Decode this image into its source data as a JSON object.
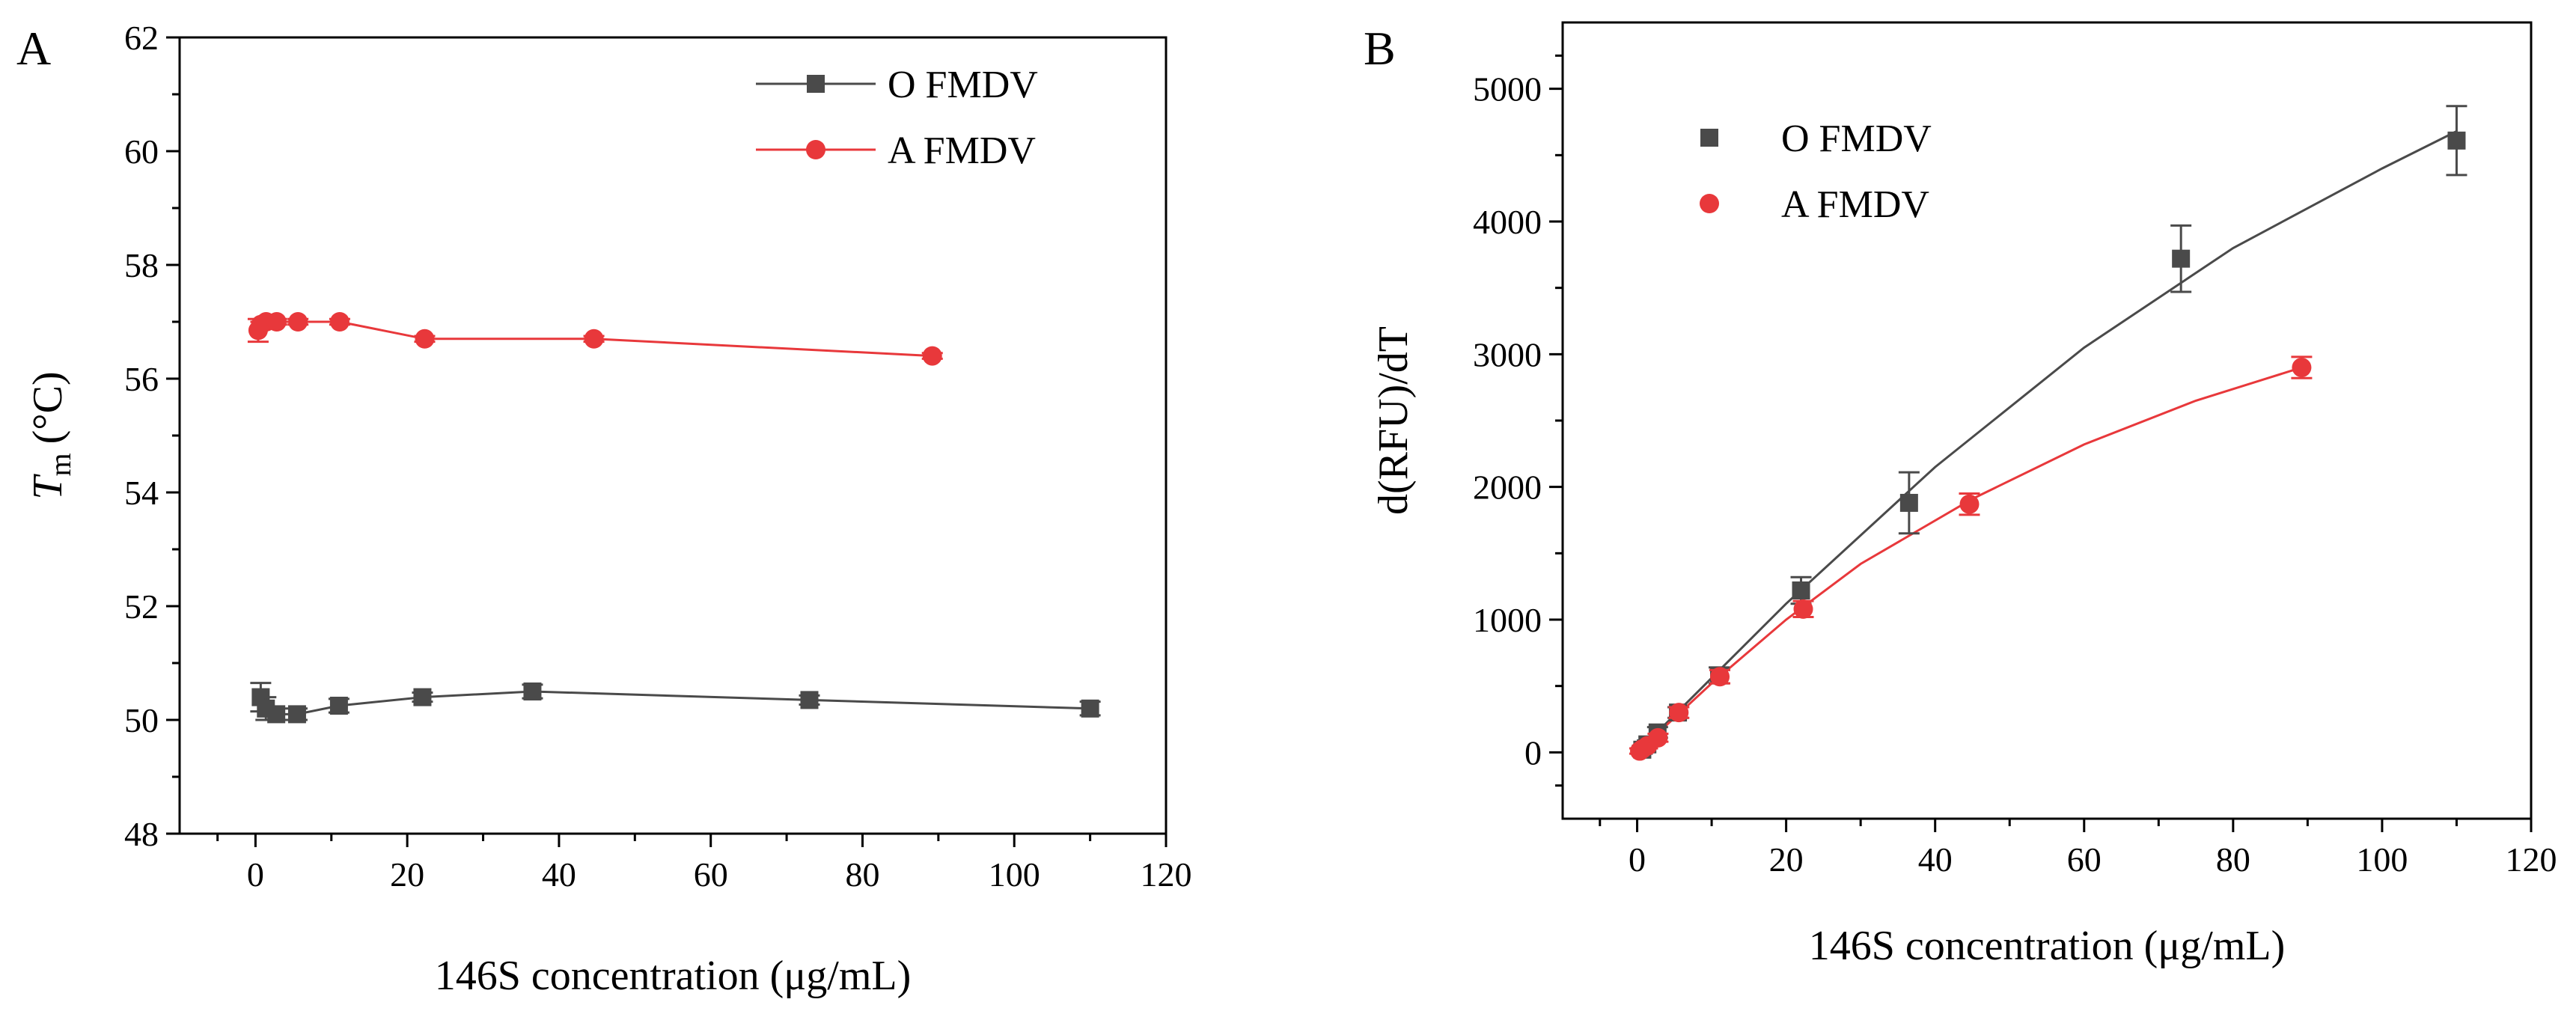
{
  "chart_data": [
    {
      "panel_label": "A",
      "type": "line",
      "xlabel": "146S concentration (μg/mL)",
      "ylabel_main": "T",
      "ylabel_sub": "m",
      "ylabel_unit": "(°C)",
      "xlim": [
        -10,
        120
      ],
      "ylim": [
        48,
        62
      ],
      "xticks": [
        0,
        20,
        40,
        60,
        80,
        100,
        120
      ],
      "yticks": [
        48,
        50,
        52,
        54,
        56,
        58,
        60,
        62
      ],
      "legend_position": "top-right",
      "series": [
        {
          "name": "O FMDV",
          "color": "#4a4a4a",
          "marker": "square",
          "x": [
            0.69,
            1.37,
            2.74,
            5.48,
            11.0,
            22.0,
            36.5,
            73.0,
            110.0
          ],
          "y": [
            50.4,
            50.2,
            50.1,
            50.1,
            50.25,
            50.4,
            50.5,
            50.35,
            50.2
          ],
          "err": [
            0.25,
            0.2,
            0.1,
            0.1,
            0.12,
            0.08,
            0.12,
            0.08,
            0.12
          ]
        },
        {
          "name": "A FMDV",
          "color": "#e8383b",
          "marker": "circle",
          "x": [
            0.35,
            0.7,
            1.4,
            2.8,
            5.6,
            11.1,
            22.3,
            44.6,
            89.2
          ],
          "y": [
            56.85,
            56.95,
            57.0,
            57.0,
            57.0,
            57.0,
            56.7,
            56.7,
            56.4
          ],
          "err": [
            0.2,
            0.05,
            0.05,
            0.05,
            0.05,
            0.05,
            0.05,
            0.05,
            0.05
          ]
        }
      ]
    },
    {
      "panel_label": "B",
      "type": "scatter",
      "xlabel": "146S concentration (μg/mL)",
      "ylabel": "d(RFU)/dT",
      "xlim": [
        -10,
        120
      ],
      "ylim": [
        -500,
        5500
      ],
      "xticks": [
        0,
        20,
        40,
        60,
        80,
        100,
        120
      ],
      "yticks": [
        0,
        1000,
        2000,
        3000,
        4000,
        5000
      ],
      "legend_position": "top-left",
      "series": [
        {
          "name": "O FMDV",
          "color": "#4a4a4a",
          "marker": "square",
          "x": [
            0.69,
            1.37,
            2.74,
            5.48,
            11.0,
            22.0,
            36.5,
            73.0,
            110.0
          ],
          "y": [
            20,
            60,
            150,
            300,
            580,
            1220,
            1880,
            3720,
            4610
          ],
          "err": [
            30,
            30,
            40,
            40,
            60,
            100,
            230,
            250,
            260
          ],
          "fit_curve": {
            "x": [
              0,
              20,
              40,
              60,
              80,
              100,
              110
            ],
            "y": [
              0,
              1120,
              2150,
              3050,
              3800,
              4400,
              4680
            ]
          }
        },
        {
          "name": "A FMDV",
          "color": "#e8383b",
          "marker": "circle",
          "x": [
            0.35,
            0.7,
            1.4,
            2.8,
            5.6,
            11.1,
            22.3,
            44.6,
            89.2
          ],
          "y": [
            10,
            25,
            50,
            110,
            300,
            570,
            1080,
            1870,
            2900
          ],
          "err": [
            20,
            20,
            20,
            30,
            40,
            50,
            60,
            80,
            80
          ],
          "fit_curve": {
            "x": [
              0,
              10,
              20,
              30,
              45,
              60,
              75,
              89.2
            ],
            "y": [
              0,
              520,
              1000,
              1420,
              1910,
              2320,
              2650,
              2900
            ]
          }
        }
      ]
    }
  ]
}
